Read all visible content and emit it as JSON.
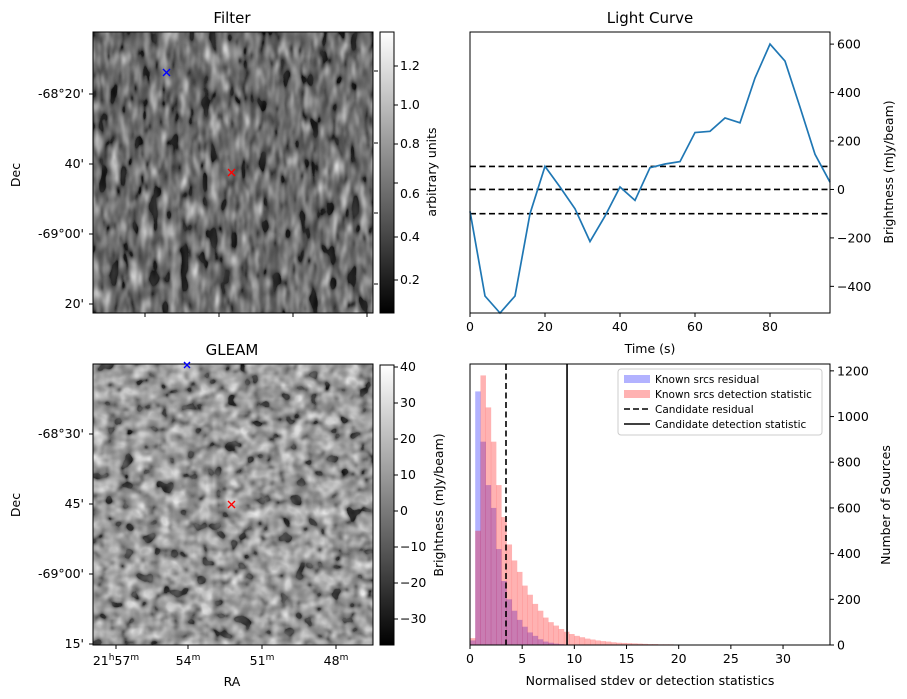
{
  "panels": {
    "filter": {
      "title": "Filter",
      "ylabel": "Dec",
      "yticks": [
        "-68°20'",
        "40'",
        "-69°00'",
        "20'"
      ],
      "colorbar_label": "arbitrary units",
      "colorbar_ticks": [
        "1.2",
        "1.0",
        "0.8",
        "0.6",
        "0.4",
        "0.2"
      ],
      "colorbar_range": [
        0.05,
        1.35
      ]
    },
    "gleam": {
      "title": "GLEAM",
      "ylabel": "Dec",
      "xlabel": "RA",
      "yticks": [
        "-68°30'",
        "45'",
        "-69°00'",
        "15'"
      ],
      "xticks": [
        {
          "main": "21",
          "sup1": "h",
          "mid": "57",
          "sup2": "m"
        },
        {
          "main": "54",
          "sup1": "",
          "mid": "",
          "sup2": "m"
        },
        {
          "main": "51",
          "sup1": "",
          "mid": "",
          "sup2": "m"
        },
        {
          "main": "48",
          "sup1": "",
          "mid": "",
          "sup2": "m"
        }
      ],
      "colorbar_label": "Brightness (mJy/beam)",
      "colorbar_ticks": [
        "40",
        "30",
        "20",
        "10",
        "0",
        "−10",
        "−20",
        "−30"
      ],
      "colorbar_range": [
        -37,
        40
      ]
    }
  },
  "chart_data": [
    {
      "type": "line",
      "title": "Light Curve",
      "xlabel": "Time (s)",
      "ylabel": "Brightness (mJy/beam)",
      "xlim": [
        0,
        96
      ],
      "ylim": [
        -510,
        650
      ],
      "xticks": [
        0,
        20,
        40,
        60,
        80
      ],
      "xtick_labels": [
        "0",
        "20",
        "40",
        "60",
        "80"
      ],
      "yticks": [
        -400,
        -200,
        0,
        200,
        400,
        600
      ],
      "ytick_labels": [
        "−400",
        "−200",
        "0",
        "200",
        "400",
        "600"
      ],
      "color": "#1f77b4",
      "x": [
        0,
        4,
        8,
        12,
        16,
        20,
        24,
        28,
        32,
        36,
        40,
        44,
        48,
        52,
        56,
        60,
        64,
        68,
        72,
        76,
        80,
        84,
        88,
        92,
        96
      ],
      "y": [
        -90,
        -440,
        -510,
        -440,
        -100,
        95,
        10,
        -80,
        -215,
        -110,
        10,
        -45,
        90,
        105,
        115,
        235,
        240,
        295,
        275,
        460,
        600,
        530,
        340,
        145,
        30
      ],
      "hlines": [
        95,
        0,
        -100
      ],
      "hline_style": "dashed"
    },
    {
      "type": "bar",
      "subtype": "histogram",
      "xlabel": "Normalised stdev or detection statistics",
      "ylabel": "Number of Sources",
      "xlim": [
        0,
        34.5
      ],
      "ylim": [
        0,
        1230
      ],
      "xticks": [
        0,
        5,
        10,
        15,
        20,
        25,
        30
      ],
      "xtick_labels": [
        "0",
        "5",
        "10",
        "15",
        "20",
        "25",
        "30"
      ],
      "yticks": [
        0,
        200,
        400,
        600,
        800,
        1000,
        1200
      ],
      "ytick_labels": [
        "0",
        "200",
        "400",
        "600",
        "800",
        "1000",
        "1200"
      ],
      "bin_width": 0.5,
      "series": [
        {
          "name": "Known srcs residual",
          "color": "#0000ff",
          "alpha": 0.3,
          "bin_start": 0,
          "values": [
            20,
            1110,
            890,
            700,
            600,
            420,
            280,
            200,
            150,
            110,
            80,
            55,
            40,
            25,
            15,
            10,
            6,
            4,
            2,
            1
          ]
        },
        {
          "name": "Known srcs detection statistic",
          "color": "#ff0000",
          "alpha": 0.3,
          "bin_start": 0,
          "values": [
            30,
            500,
            1180,
            1040,
            890,
            700,
            560,
            440,
            370,
            320,
            260,
            220,
            180,
            150,
            120,
            100,
            85,
            70,
            58,
            48,
            40,
            34,
            28,
            24,
            20,
            17,
            15,
            12,
            10,
            9,
            8,
            7,
            6,
            5,
            4,
            4,
            3,
            3,
            3,
            2,
            2,
            2,
            2,
            2,
            1,
            1,
            1,
            1,
            1,
            1,
            1,
            1,
            1,
            1,
            1,
            1,
            1,
            1,
            1,
            1,
            1,
            1,
            1,
            1,
            1,
            1
          ]
        }
      ],
      "vlines": [
        {
          "name": "Candidate residual",
          "x": 3.45,
          "style": "dashed"
        },
        {
          "name": "Candidate detection statistic",
          "x": 9.3,
          "style": "solid"
        }
      ],
      "legend_position": "top-right"
    }
  ]
}
